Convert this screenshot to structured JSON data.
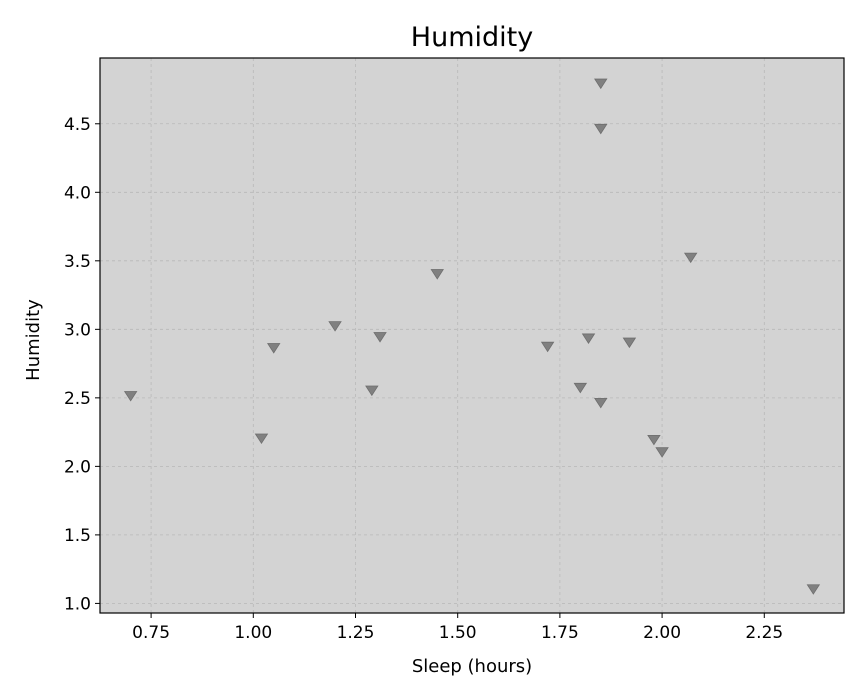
{
  "chart_data": {
    "type": "scatter",
    "title": "Humidity",
    "xlabel": "Sleep (hours)",
    "ylabel": "Humidity",
    "xlim": [
      0.625,
      2.445
    ],
    "ylim": [
      0.93,
      4.98
    ],
    "xticks": [
      0.75,
      1.0,
      1.25,
      1.5,
      1.75,
      2.0,
      2.25
    ],
    "xtick_labels": [
      "0.75",
      "1.00",
      "1.25",
      "1.50",
      "1.75",
      "2.00",
      "2.25"
    ],
    "yticks": [
      1.0,
      1.5,
      2.0,
      2.5,
      3.0,
      3.5,
      4.0,
      4.5
    ],
    "ytick_labels": [
      "1.0",
      "1.5",
      "2.0",
      "2.5",
      "3.0",
      "3.5",
      "4.0",
      "4.5"
    ],
    "grid": true,
    "marker": "triangle-down",
    "colors": {
      "marker": "#808080",
      "plot_background": "#d3d3d3"
    },
    "points": [
      {
        "x": 0.7,
        "y": 2.52
      },
      {
        "x": 1.02,
        "y": 2.21
      },
      {
        "x": 1.05,
        "y": 2.87
      },
      {
        "x": 1.2,
        "y": 3.03
      },
      {
        "x": 1.29,
        "y": 2.56
      },
      {
        "x": 1.31,
        "y": 2.95
      },
      {
        "x": 1.45,
        "y": 3.41
      },
      {
        "x": 1.72,
        "y": 2.88
      },
      {
        "x": 1.8,
        "y": 2.58
      },
      {
        "x": 1.82,
        "y": 2.94
      },
      {
        "x": 1.85,
        "y": 4.8
      },
      {
        "x": 1.85,
        "y": 4.47
      },
      {
        "x": 1.85,
        "y": 2.47
      },
      {
        "x": 1.92,
        "y": 2.91
      },
      {
        "x": 1.98,
        "y": 2.2
      },
      {
        "x": 2.0,
        "y": 2.11
      },
      {
        "x": 2.07,
        "y": 3.53
      },
      {
        "x": 2.37,
        "y": 1.11
      }
    ]
  }
}
